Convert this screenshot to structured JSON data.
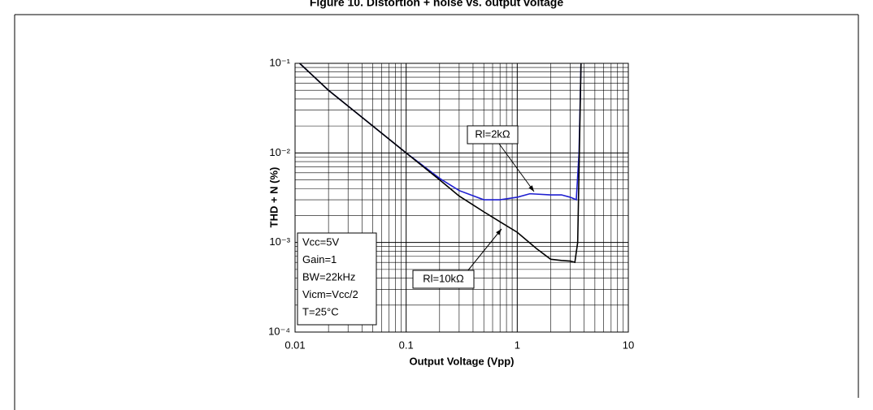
{
  "chart_data": {
    "type": "line",
    "title": "Figure 10. Distortion + noise vs. output voltage",
    "xlabel": "Output Voltage (Vpp)",
    "ylabel": "THD + N (%)",
    "xlog": true,
    "ylog": true,
    "grid": true,
    "xlim": [
      0.01,
      10
    ],
    "ylim": [
      0.0001,
      0.1
    ],
    "xticks": [
      0.01,
      0.1,
      1,
      10
    ],
    "yticks": [
      {
        "value": 0.0001,
        "label": "10⁻⁴"
      },
      {
        "value": 0.001,
        "label": "10⁻³"
      },
      {
        "value": 0.01,
        "label": "10⁻²"
      },
      {
        "value": 0.1,
        "label": "10⁻¹"
      }
    ],
    "series": [
      {
        "name": "Rl=2kΩ",
        "color": "#1f1fd0",
        "x": [
          0.011,
          0.02,
          0.05,
          0.1,
          0.2,
          0.3,
          0.5,
          0.7,
          1,
          1.3,
          2,
          2.5,
          3,
          3.4,
          3.6,
          3.75
        ],
        "values": [
          0.1,
          0.05,
          0.02,
          0.01,
          0.0052,
          0.0038,
          0.003,
          0.003,
          0.0032,
          0.0035,
          0.0034,
          0.0034,
          0.0032,
          0.003,
          0.01,
          0.1
        ]
      },
      {
        "name": "Rl=10kΩ",
        "color": "#000000",
        "x": [
          0.011,
          0.02,
          0.05,
          0.1,
          0.2,
          0.3,
          0.5,
          0.7,
          1,
          1.5,
          2,
          2.5,
          3,
          3.3,
          3.5,
          3.75
        ],
        "values": [
          0.1,
          0.05,
          0.02,
          0.01,
          0.005,
          0.0033,
          0.0022,
          0.0017,
          0.0013,
          0.00085,
          0.00065,
          0.00063,
          0.00062,
          0.0006,
          0.001,
          0.1
        ]
      }
    ],
    "conditions": [
      "Vcc=5V",
      "Gain=1",
      "BW=22kHz",
      "Vicm=Vcc/2",
      "T=25°C"
    ]
  }
}
